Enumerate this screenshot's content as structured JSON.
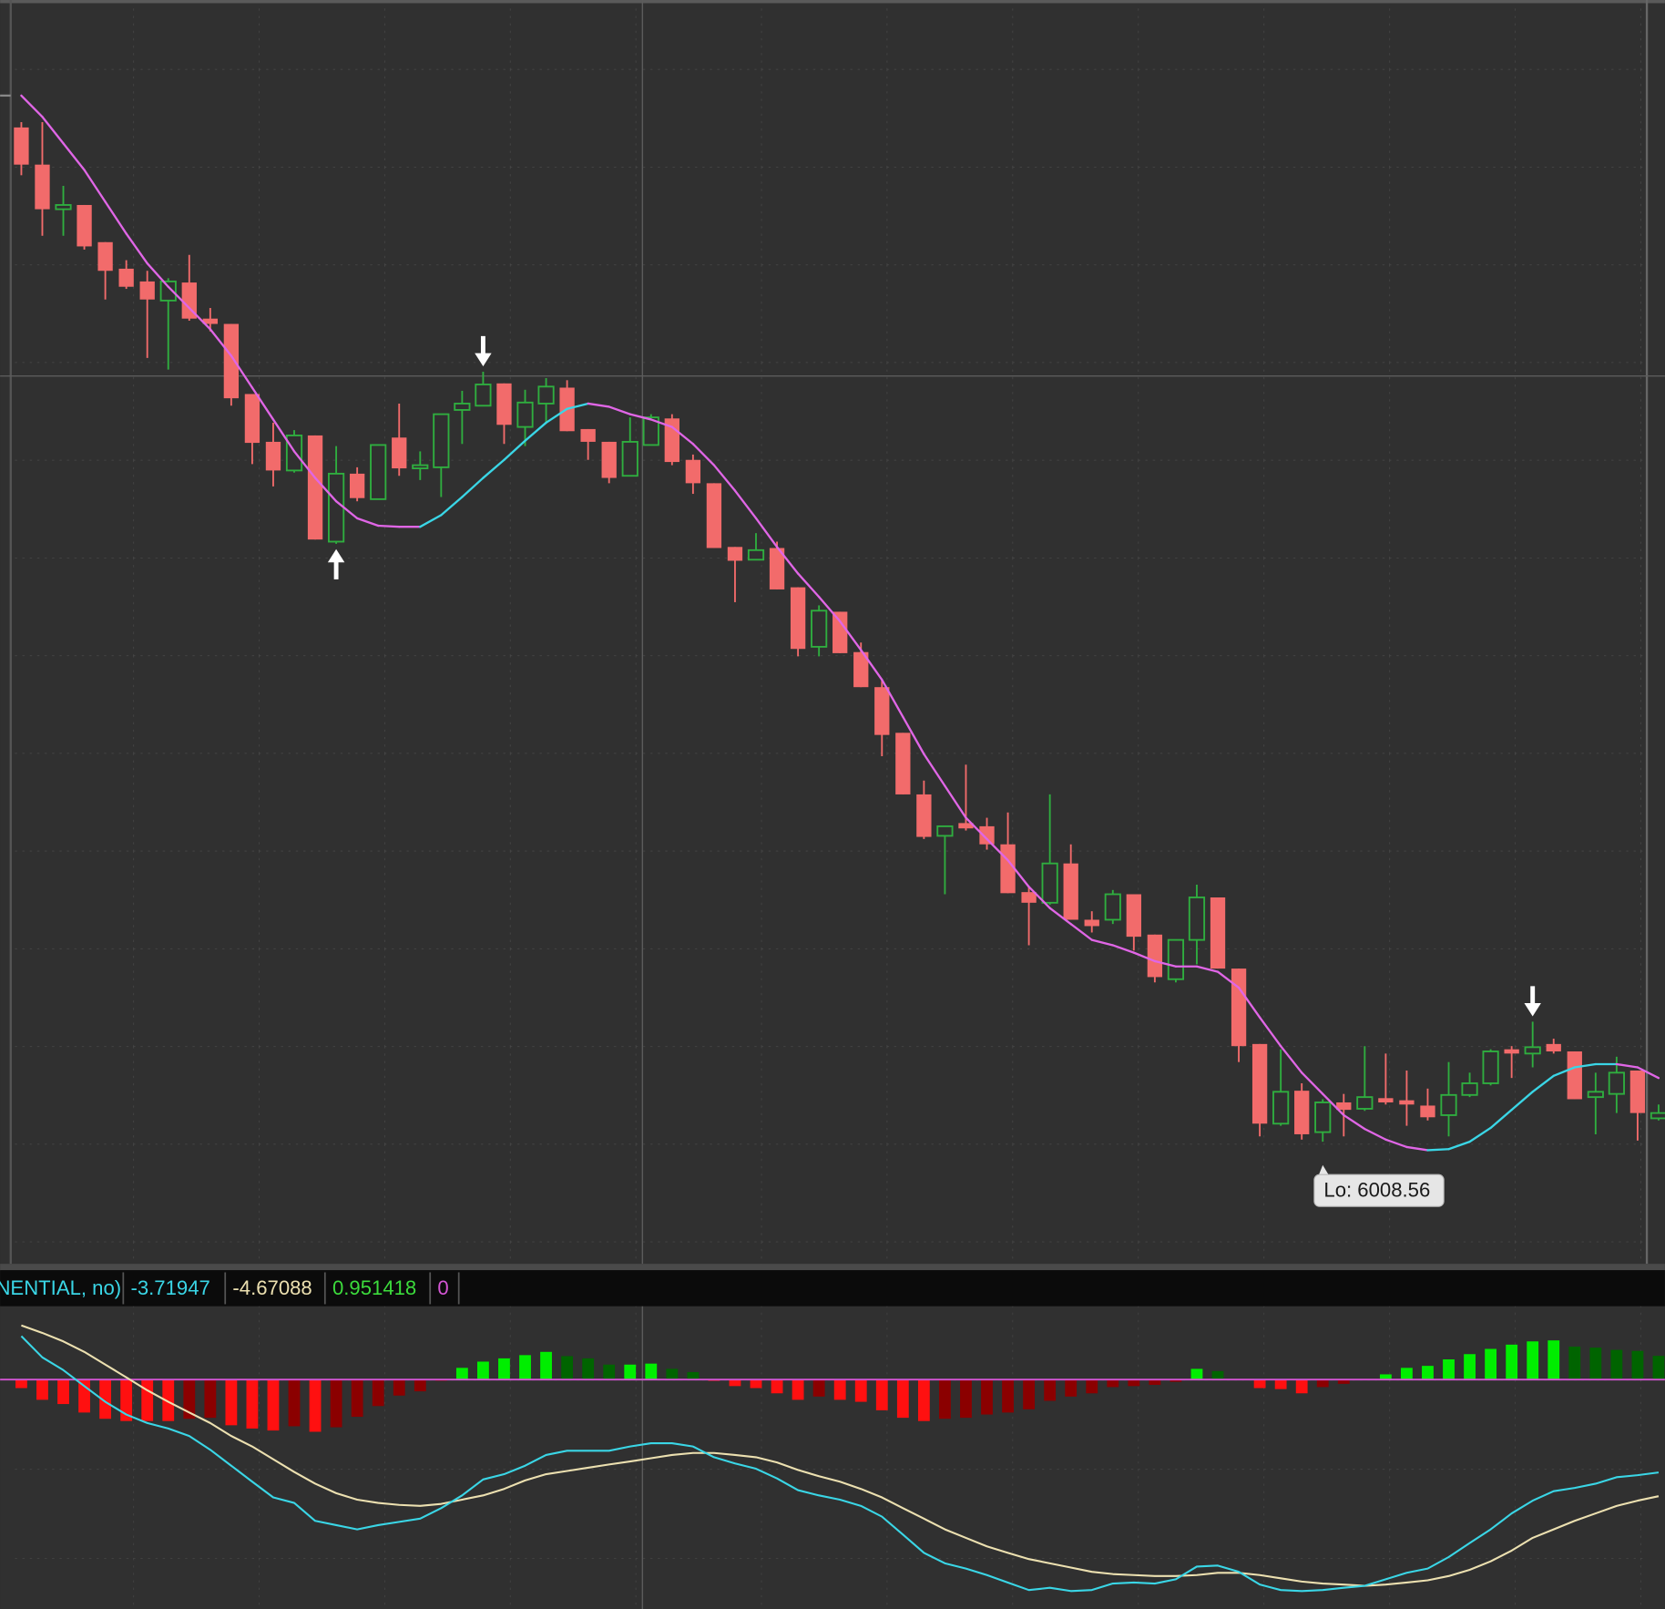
{
  "chart_data": [
    {
      "type": "candlestick",
      "ylim": [
        5997.06,
        6116.06
      ],
      "up_color": "#2fae3f",
      "down_color": "#f26b6b",
      "open": [
        6104.06,
        6100.56,
        6096.36,
        6096.76,
        6093.26,
        6090.76,
        6089.56,
        6087.76,
        6089.46,
        6086.06,
        6085.56,
        6078.96,
        6074.46,
        6071.76,
        6075.06,
        6065.06,
        6071.46,
        6069.06,
        6074.86,
        6071.96,
        6072.06,
        6077.46,
        6077.86,
        6079.96,
        6075.86,
        6078.06,
        6079.56,
        6075.66,
        6074.46,
        6071.26,
        6074.16,
        6076.66,
        6072.76,
        6070.56,
        6064.56,
        6063.36,
        6064.46,
        6060.76,
        6055.16,
        6058.46,
        6054.66,
        6051.36,
        6047.06,
        6041.26,
        6037.36,
        6038.56,
        6038.26,
        6036.56,
        6032.06,
        6031.06,
        6034.76,
        6029.46,
        6029.46,
        6031.86,
        6028.06,
        6023.86,
        6027.56,
        6031.56,
        6024.86,
        6017.76,
        6010.26,
        6013.36,
        6009.46,
        6012.26,
        6011.66,
        6012.66,
        6012.46,
        6011.96,
        6011.06,
        6012.96,
        6014.06,
        6017.26,
        6016.86,
        6017.76,
        6017.06,
        6012.76,
        6013.06,
        6015.26,
        6010.76
      ],
      "high": [
        6104.56,
        6104.56,
        6098.56,
        6096.76,
        6093.26,
        6091.56,
        6090.56,
        6089.86,
        6092.06,
        6087.06,
        6085.56,
        6078.96,
        6076.26,
        6075.56,
        6075.06,
        6074.06,
        6072.06,
        6074.16,
        6078.06,
        6073.56,
        6077.06,
        6079.26,
        6081.06,
        6079.96,
        6079.36,
        6080.46,
        6080.26,
        6075.66,
        6074.46,
        6076.76,
        6077.06,
        6077.06,
        6073.26,
        6070.56,
        6064.56,
        6065.86,
        6065.06,
        6060.76,
        6059.06,
        6058.46,
        6055.56,
        6052.06,
        6047.06,
        6042.56,
        6038.26,
        6044.06,
        6039.06,
        6039.56,
        6032.56,
        6041.26,
        6036.56,
        6030.26,
        6032.26,
        6031.86,
        6028.06,
        6027.56,
        6032.76,
        6031.56,
        6024.86,
        6017.76,
        6017.26,
        6014.06,
        6012.56,
        6013.06,
        6017.56,
        6016.86,
        6015.26,
        6013.56,
        6016.06,
        6015.06,
        6017.26,
        6017.56,
        6019.86,
        6018.26,
        6017.06,
        6015.06,
        6016.56,
        6015.26,
        6012.06
      ],
      "low": [
        6099.56,
        6093.86,
        6093.86,
        6092.56,
        6087.86,
        6088.86,
        6082.36,
        6081.26,
        6085.86,
        6084.86,
        6077.86,
        6072.36,
        6070.26,
        6071.56,
        6065.26,
        6064.86,
        6068.86,
        6069.06,
        6071.26,
        6070.86,
        6069.26,
        6074.26,
        6077.86,
        6074.26,
        6074.06,
        6076.26,
        6075.46,
        6072.76,
        6070.56,
        6071.26,
        6074.16,
        6072.26,
        6069.56,
        6064.46,
        6059.36,
        6063.36,
        6060.56,
        6054.26,
        6054.26,
        6054.56,
        6051.36,
        6044.86,
        6041.26,
        6037.06,
        6031.86,
        6037.86,
        6036.06,
        6031.96,
        6027.06,
        6030.86,
        6029.46,
        6028.26,
        6029.06,
        6026.56,
        6023.56,
        6023.56,
        6025.26,
        6024.86,
        6016.06,
        6009.06,
        6010.06,
        6008.76,
        6008.56,
        6009.06,
        6011.46,
        6012.06,
        6010.06,
        6010.56,
        6009.06,
        6012.76,
        6013.86,
        6014.56,
        6015.56,
        6016.86,
        6012.56,
        6009.26,
        6011.26,
        6008.66,
        6010.56
      ],
      "close": [
        6100.56,
        6096.36,
        6096.76,
        6092.86,
        6090.56,
        6089.06,
        6087.86,
        6089.56,
        6086.06,
        6085.56,
        6078.56,
        6074.36,
        6071.76,
        6075.06,
        6065.26,
        6071.46,
        6069.16,
        6074.16,
        6071.96,
        6072.26,
        6077.06,
        6078.06,
        6079.86,
        6076.06,
        6078.16,
        6079.66,
        6075.46,
        6074.46,
        6071.06,
        6074.46,
        6076.76,
        6072.56,
        6070.56,
        6064.46,
        6063.26,
        6064.26,
        6060.56,
        6054.96,
        6058.56,
        6054.56,
        6051.36,
        6046.86,
        6041.26,
        6037.26,
        6038.26,
        6038.06,
        6036.56,
        6031.96,
        6031.06,
        6034.76,
        6029.46,
        6028.86,
        6031.86,
        6027.86,
        6024.06,
        6027.56,
        6031.56,
        6024.86,
        6017.56,
        6010.26,
        6013.26,
        6009.26,
        6012.26,
        6011.56,
        6012.76,
        6012.26,
        6012.06,
        6010.86,
        6012.96,
        6014.06,
        6017.06,
        6016.86,
        6017.46,
        6017.06,
        6012.56,
        6013.26,
        6015.06,
        6011.26,
        6011.26
      ],
      "ma": {
        "up_color": "#3ad6e6",
        "down_color": "#e066e6",
        "values": [
          6107.06,
          6105.06,
          6102.56,
          6100.06,
          6097.06,
          6094.06,
          6091.26,
          6089.06,
          6087.06,
          6085.06,
          6082.56,
          6079.56,
          6076.56,
          6073.56,
          6071.06,
          6068.86,
          6067.26,
          6066.56,
          6066.46,
          6066.46,
          6067.56,
          6069.26,
          6071.06,
          6072.76,
          6074.56,
          6076.26,
          6077.56,
          6078.06,
          6077.76,
          6077.06,
          6076.56,
          6075.86,
          6074.26,
          6072.26,
          6069.86,
          6067.26,
          6064.56,
          6062.06,
          6059.86,
          6057.56,
          6054.86,
          6052.06,
          6048.56,
          6045.06,
          6042.06,
          6039.06,
          6037.06,
          6035.06,
          6032.56,
          6030.56,
          6029.06,
          6027.56,
          6027.06,
          6026.36,
          6025.56,
          6025.06,
          6025.06,
          6024.56,
          6023.06,
          6020.26,
          6017.56,
          6015.06,
          6013.06,
          6011.06,
          6009.76,
          6008.76,
          6008.06,
          6007.76,
          6007.86,
          6008.56,
          6009.86,
          6011.56,
          6013.26,
          6014.76,
          6015.56,
          6015.86,
          6015.86,
          6015.56,
          6014.56
        ]
      },
      "signal_up": [
        15
      ],
      "signal_down": [
        22,
        72
      ],
      "annotation": "Lo: 6008.56"
    },
    {
      "type": "macd",
      "study_title": "NENTIAL, no)",
      "study_title_color": "#3ad6e6",
      "ylim": [
        -9.19,
        2.85
      ],
      "zero": 0,
      "zero_color": "#d455d4",
      "macd": {
        "color": "#3ad6e6",
        "values": [
          1.74,
          0.89,
          0.38,
          -0.26,
          -0.89,
          -1.4,
          -1.74,
          -1.96,
          -2.26,
          -2.81,
          -3.45,
          -4.09,
          -4.72,
          -4.94,
          -5.66,
          -5.83,
          -6.0,
          -5.83,
          -5.7,
          -5.57,
          -5.15,
          -4.64,
          -4.0,
          -3.79,
          -3.45,
          -3.02,
          -2.85,
          -2.85,
          -2.85,
          -2.68,
          -2.55,
          -2.55,
          -2.68,
          -3.11,
          -3.36,
          -3.57,
          -3.96,
          -4.43,
          -4.64,
          -4.81,
          -5.06,
          -5.49,
          -6.21,
          -6.94,
          -7.36,
          -7.57,
          -7.83,
          -8.13,
          -8.43,
          -8.34,
          -8.47,
          -8.43,
          -8.17,
          -8.13,
          -8.17,
          -8.0,
          -7.49,
          -7.45,
          -7.7,
          -8.21,
          -8.43,
          -8.47,
          -8.43,
          -8.34,
          -8.26,
          -8.0,
          -7.74,
          -7.57,
          -7.11,
          -6.55,
          -6.0,
          -5.36,
          -4.85,
          -4.47,
          -4.34,
          -4.17,
          -3.91,
          -3.83,
          -3.71947
        ]
      },
      "signal": {
        "color": "#ece0b0",
        "values": [
          2.17,
          1.87,
          1.53,
          1.11,
          0.6,
          0.09,
          -0.43,
          -0.89,
          -1.32,
          -1.74,
          -2.26,
          -2.68,
          -3.19,
          -3.7,
          -4.17,
          -4.55,
          -4.81,
          -4.94,
          -5.02,
          -5.06,
          -4.98,
          -4.81,
          -4.64,
          -4.38,
          -4.04,
          -3.79,
          -3.66,
          -3.53,
          -3.4,
          -3.28,
          -3.15,
          -3.02,
          -2.94,
          -2.94,
          -3.02,
          -3.11,
          -3.32,
          -3.62,
          -3.87,
          -4.09,
          -4.38,
          -4.72,
          -5.15,
          -5.57,
          -6.0,
          -6.34,
          -6.68,
          -6.94,
          -7.19,
          -7.36,
          -7.53,
          -7.7,
          -7.79,
          -7.83,
          -7.87,
          -7.87,
          -7.83,
          -7.74,
          -7.74,
          -7.83,
          -7.96,
          -8.09,
          -8.17,
          -8.21,
          -8.26,
          -8.21,
          -8.13,
          -8.04,
          -7.87,
          -7.62,
          -7.28,
          -6.85,
          -6.34,
          -6.0,
          -5.66,
          -5.36,
          -5.06,
          -4.85,
          -4.67088
        ]
      },
      "diff": {
        "label_color": "#3cdc3c",
        "up_strong": "#00ee00",
        "up_weak": "#006400",
        "down_strong": "#ff1010",
        "down_weak": "#8b0000",
        "values": [
          -0.34,
          -0.81,
          -0.98,
          -1.32,
          -1.57,
          -1.66,
          -1.66,
          -1.66,
          -1.57,
          -1.53,
          -1.83,
          -1.96,
          -2.04,
          -1.87,
          -2.09,
          -1.91,
          -1.49,
          -1.06,
          -0.64,
          -0.47,
          -0.05,
          0.47,
          0.72,
          0.85,
          0.98,
          1.11,
          0.94,
          0.85,
          0.6,
          0.6,
          0.64,
          0.43,
          0.3,
          -0.05,
          -0.26,
          -0.34,
          -0.55,
          -0.81,
          -0.68,
          -0.81,
          -0.89,
          -1.23,
          -1.53,
          -1.66,
          -1.57,
          -1.53,
          -1.4,
          -1.32,
          -1.19,
          -0.85,
          -0.68,
          -0.55,
          -0.3,
          -0.26,
          -0.21,
          -0.09,
          0.43,
          0.34,
          0.02,
          -0.34,
          -0.38,
          -0.55,
          -0.3,
          -0.17,
          0.02,
          0.21,
          0.47,
          0.55,
          0.81,
          1.02,
          1.23,
          1.4,
          1.53,
          1.57,
          1.32,
          1.28,
          1.19,
          1.15,
          0.951418
        ]
      }
    }
  ]
}
